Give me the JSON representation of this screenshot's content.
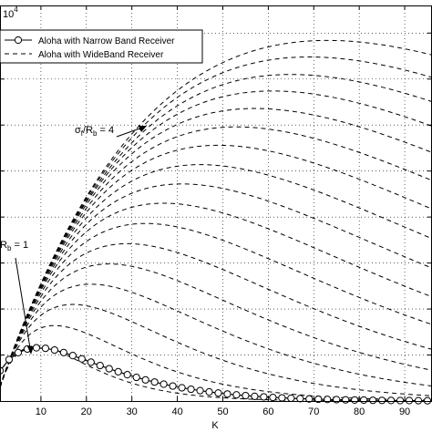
{
  "chart_data": {
    "type": "line",
    "xlabel": "K",
    "ylabel": "",
    "exponent_label": "10",
    "exponent_power": "4",
    "xlim": [
      1,
      96
    ],
    "ylim": [
      0,
      4.3
    ],
    "x_ticks": [
      "10",
      "20",
      "30",
      "40",
      "50",
      "60",
      "70",
      "80",
      "90"
    ],
    "grid": true,
    "legend_position": "top-left",
    "legend": [
      {
        "label": "Aloha with Narrow Band Receiver",
        "style": "solid-circle"
      },
      {
        "label": "Aloha with WideBand Receiver",
        "style": "dashed"
      }
    ],
    "annotations": [
      {
        "text_main": "σ",
        "text_sub1": "f",
        "text_mid": "/R",
        "text_sub2": "b",
        "text_end": " = 4"
      },
      {
        "text_main": "R",
        "text_sub1": "b",
        "text_end": " = 1"
      }
    ],
    "narrowband_series": {
      "name": "Aloha with Narrow Band Receiver",
      "x": [
        1,
        3,
        5,
        7,
        9,
        11,
        13,
        15,
        17,
        19,
        21,
        23,
        25,
        27,
        29,
        31,
        33,
        35,
        37,
        39,
        41,
        43,
        45,
        47,
        49,
        51,
        53,
        55,
        57,
        59,
        61,
        63,
        65,
        67,
        69,
        71,
        73,
        75,
        77,
        79,
        81,
        83,
        85,
        87,
        89,
        91,
        93,
        95
      ],
      "y": [
        0.33,
        0.451,
        0.526,
        0.565,
        0.578,
        0.573,
        0.554,
        0.527,
        0.494,
        0.458,
        0.422,
        0.386,
        0.351,
        0.318,
        0.286,
        0.257,
        0.23,
        0.206,
        0.183,
        0.163,
        0.144,
        0.128,
        0.113,
        0.099,
        0.087,
        0.076,
        0.067,
        0.059,
        0.051,
        0.045,
        0.039,
        0.034,
        0.03,
        0.026,
        0.022,
        0.019,
        0.017,
        0.015,
        0.013,
        0.011,
        0.01,
        0.008,
        0.007,
        0.006,
        0.005,
        0.005,
        0.004,
        0.003
      ]
    },
    "wideband_series": [
      {
        "peak_x": 9,
        "peak_y": 0.6
      },
      {
        "peak_x": 13,
        "peak_y": 0.82
      },
      {
        "peak_x": 17,
        "peak_y": 1.05
      },
      {
        "peak_x": 21,
        "peak_y": 1.27
      },
      {
        "peak_x": 25,
        "peak_y": 1.49
      },
      {
        "peak_x": 29,
        "peak_y": 1.71
      },
      {
        "peak_x": 33,
        "peak_y": 1.93
      },
      {
        "peak_x": 37,
        "peak_y": 2.15
      },
      {
        "peak_x": 41,
        "peak_y": 2.36
      },
      {
        "peak_x": 45,
        "peak_y": 2.57
      },
      {
        "peak_x": 49,
        "peak_y": 2.78
      },
      {
        "peak_x": 53,
        "peak_y": 2.98
      },
      {
        "peak_x": 57,
        "peak_y": 3.18
      },
      {
        "peak_x": 61,
        "peak_y": 3.37
      },
      {
        "peak_x": 65,
        "peak_y": 3.55
      },
      {
        "peak_x": 69,
        "peak_y": 3.74
      },
      {
        "peak_x": 73,
        "peak_y": 3.92
      }
    ]
  }
}
